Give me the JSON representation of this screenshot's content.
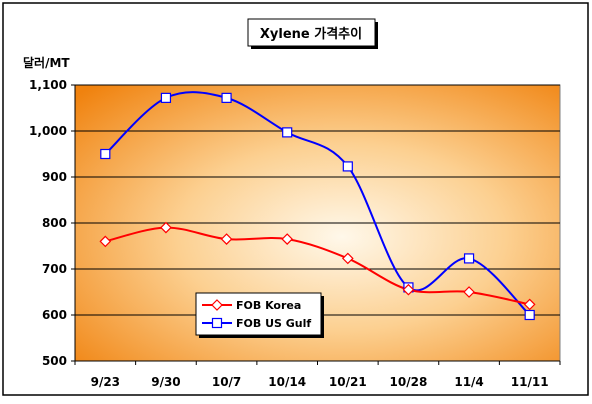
{
  "chart_data": {
    "type": "line",
    "title": "Xylene 가격추이",
    "ylabel": "달러/MT",
    "xlabel": "",
    "categories": [
      "9/23",
      "9/30",
      "10/7",
      "10/14",
      "10/21",
      "10/28",
      "11/4",
      "11/11"
    ],
    "y_ticks": [
      "500",
      "600",
      "700",
      "800",
      "900",
      "1,000",
      "1,100"
    ],
    "ylim": [
      500,
      1100
    ],
    "grid": "horizontal",
    "legend_position": "bottom-left",
    "series": [
      {
        "name": "FOB Korea",
        "values": [
          760,
          790,
          765,
          765,
          723,
          655,
          650,
          623
        ],
        "color": "#ff0000",
        "marker": "diamond"
      },
      {
        "name": "FOB US Gulf",
        "values": [
          950,
          1072,
          1072,
          997,
          923,
          660,
          723,
          600
        ],
        "color": "#0000ff",
        "marker": "square"
      }
    ]
  }
}
